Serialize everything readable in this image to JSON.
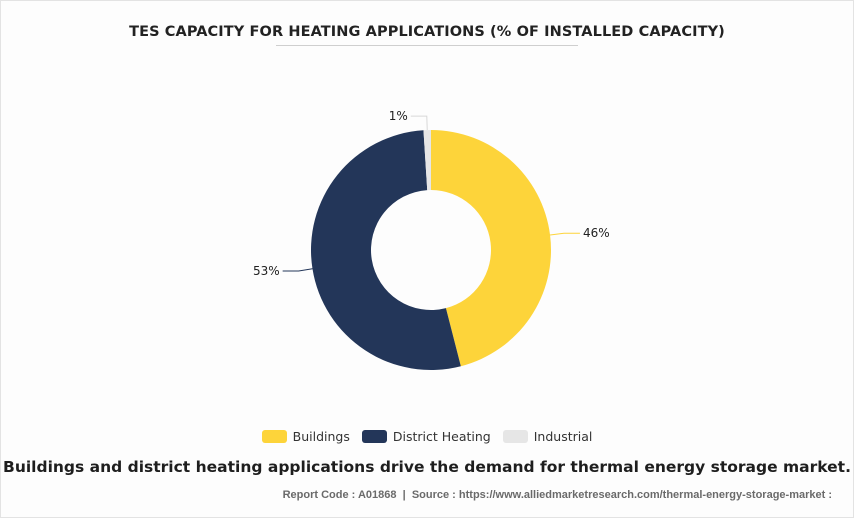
{
  "chart_data": {
    "type": "pie",
    "title": "TES CAPACITY FOR HEATING APPLICATIONS (% OF INSTALLED CAPACITY)",
    "categories": [
      "Buildings",
      "District Heating",
      "Industrial"
    ],
    "values": [
      46,
      53,
      1
    ],
    "value_labels": [
      "46%",
      "53%",
      "1%"
    ],
    "colors": [
      "#FDD43A",
      "#233659",
      "#E6E6E6"
    ],
    "donut": true,
    "legend_position": "bottom"
  },
  "headline": "Buildings and district heating applications drive the demand for thermal energy storage market.",
  "footer": {
    "report_code": "Report Code : A01868",
    "separator": "|",
    "source": "Source : https://www.alliedmarketresearch.com/thermal-energy-storage-market :"
  }
}
